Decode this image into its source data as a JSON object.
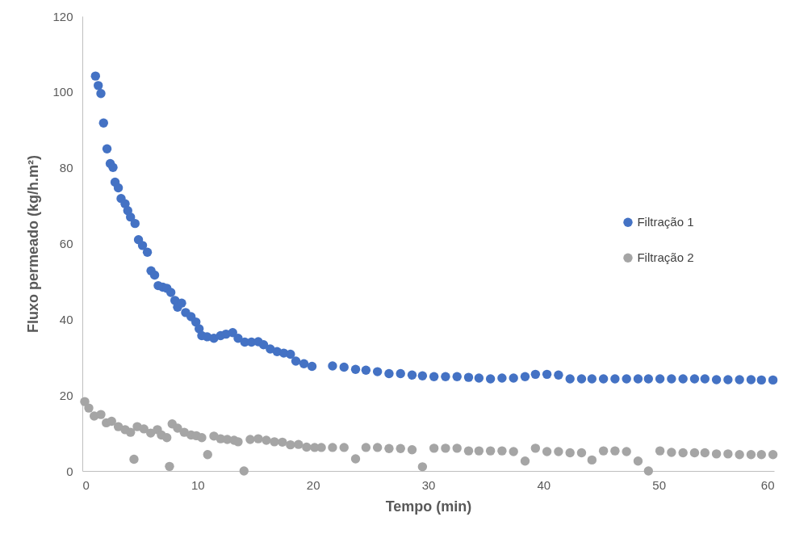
{
  "chart_data": {
    "type": "scatter",
    "xlabel": "Tempo (min)",
    "ylabel": "Fluxo permeado (kg/h.m²)",
    "xlim": [
      0,
      60
    ],
    "xticks": [
      0,
      10,
      20,
      30,
      40,
      50,
      60
    ],
    "ylim": [
      0,
      120
    ],
    "yticks": [
      0,
      20,
      40,
      60,
      80,
      100,
      120
    ],
    "grid": false,
    "legend": "right",
    "marker": "circle",
    "series": [
      {
        "name": "Filtração 1",
        "color": "#4472c4",
        "x": [
          1.14,
          1.38,
          1.61,
          1.84,
          2.14,
          2.42,
          2.66,
          2.84,
          3.12,
          3.36,
          3.71,
          3.94,
          4.18,
          4.57,
          4.87,
          5.22,
          5.64,
          5.96,
          6.27,
          6.58,
          6.98,
          7.33,
          7.68,
          8.03,
          8.26,
          8.61,
          8.96,
          9.43,
          9.85,
          10.13,
          10.36,
          10.83,
          11.41,
          11.99,
          12.46,
          13.04,
          13.51,
          14.09,
          14.67,
          15.26,
          15.72,
          16.3,
          16.89,
          17.47,
          18.05,
          18.52,
          19.22,
          19.92,
          21.7,
          22.7,
          23.7,
          24.6,
          25.6,
          26.6,
          27.6,
          28.6,
          29.5,
          30.5,
          31.5,
          32.5,
          33.5,
          34.4,
          35.4,
          36.4,
          37.4,
          38.4,
          39.3,
          40.3,
          41.3,
          42.3,
          43.3,
          44.2,
          45.2,
          46.2,
          47.2,
          48.2,
          49.1,
          50.1,
          51.1,
          52.1,
          53.1,
          54.0,
          55.0,
          56.0,
          57.0,
          58.0,
          58.9,
          59.9
        ],
        "values": [
          104.2,
          101.7,
          99.6,
          91.8,
          85.0,
          81.1,
          80.1,
          76.2,
          74.7,
          71.9,
          70.5,
          68.7,
          67.0,
          65.3,
          61.0,
          59.5,
          57.7,
          52.8,
          51.7,
          48.9,
          48.5,
          48.2,
          47.1,
          45.0,
          43.2,
          44.3,
          41.8,
          40.7,
          39.3,
          37.5,
          35.7,
          35.4,
          35.0,
          35.7,
          36.1,
          36.5,
          35.0,
          34.0,
          34.0,
          34.1,
          33.3,
          32.2,
          31.5,
          31.1,
          30.8,
          29.0,
          28.3,
          27.6,
          27.7,
          27.4,
          26.8,
          26.6,
          26.2,
          25.7,
          25.7,
          25.3,
          25.1,
          24.9,
          24.9,
          24.9,
          24.7,
          24.5,
          24.3,
          24.5,
          24.5,
          24.9,
          25.5,
          25.5,
          25.3,
          24.3,
          24.3,
          24.3,
          24.3,
          24.3,
          24.3,
          24.3,
          24.3,
          24.3,
          24.3,
          24.3,
          24.3,
          24.3,
          24.1,
          24.1,
          24.1,
          24.1,
          24.0,
          24.0
        ]
      },
      {
        "name": "Filtração 2",
        "color": "#a5a5a5",
        "x": [
          0.21,
          0.56,
          1.03,
          1.61,
          2.08,
          2.54,
          3.12,
          3.71,
          4.18,
          4.48,
          4.76,
          5.34,
          5.93,
          6.51,
          6.86,
          7.33,
          7.56,
          7.79,
          8.26,
          8.84,
          9.43,
          9.89,
          10.36,
          10.87,
          11.41,
          11.99,
          12.57,
          13.16,
          13.51,
          14.02,
          14.56,
          15.26,
          15.96,
          16.66,
          17.35,
          18.05,
          18.75,
          19.45,
          20.15,
          20.73,
          21.7,
          22.7,
          23.7,
          24.6,
          25.6,
          26.6,
          27.6,
          28.6,
          29.5,
          30.5,
          31.5,
          32.5,
          33.5,
          34.4,
          35.4,
          36.4,
          37.4,
          38.4,
          39.3,
          40.3,
          41.3,
          42.3,
          43.3,
          44.2,
          45.2,
          46.2,
          47.2,
          48.2,
          49.1,
          50.1,
          51.1,
          52.1,
          53.1,
          54.0,
          55.0,
          56.0,
          57.0,
          58.0,
          58.9,
          59.9
        ],
        "values": [
          18.3,
          16.6,
          14.5,
          14.9,
          12.7,
          13.1,
          11.7,
          10.9,
          10.2,
          3.1,
          11.7,
          11.1,
          10.0,
          10.9,
          9.5,
          8.8,
          1.2,
          12.4,
          11.3,
          10.2,
          9.5,
          9.3,
          8.8,
          4.3,
          9.2,
          8.5,
          8.3,
          8.1,
          7.7,
          0,
          8.3,
          8.5,
          8.1,
          7.7,
          7.6,
          6.9,
          7.0,
          6.3,
          6.2,
          6.2,
          6.2,
          6.2,
          3.2,
          6.2,
          6.2,
          5.9,
          5.9,
          5.6,
          1.1,
          6.0,
          6.0,
          6.0,
          5.3,
          5.3,
          5.3,
          5.3,
          5.1,
          2.6,
          6.0,
          5.1,
          5.1,
          4.8,
          4.8,
          2.9,
          5.3,
          5.3,
          5.1,
          2.6,
          0,
          5.3,
          4.9,
          4.8,
          4.8,
          4.8,
          4.5,
          4.5,
          4.3,
          4.3,
          4.3,
          4.3
        ]
      }
    ]
  }
}
